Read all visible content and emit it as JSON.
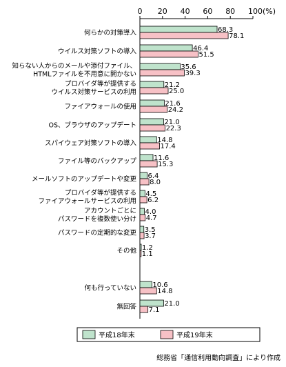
{
  "chart_data": {
    "type": "bar",
    "orientation": "horizontal",
    "xlim": [
      0,
      100
    ],
    "x_ticks": [
      "0",
      "20",
      "40",
      "60",
      "80",
      "100(%)"
    ],
    "categories": [
      [
        "何らかの対策導入"
      ],
      [
        "ウイルス対策ソフトの導入"
      ],
      [
        "知らない人からのメールや添付ファイル、",
        "HTMLファイルを不用意に開かない"
      ],
      [
        "プロバイダ等が提供する",
        "ウイルス対策サービスの利用"
      ],
      [
        "ファイアウォールの使用"
      ],
      [
        "OS、ブラウザのアップデート"
      ],
      [
        "スパイウェア対策ソフトの導入"
      ],
      [
        "ファイル等のバックアップ"
      ],
      [
        "メールソフトのアップデートや変更"
      ],
      [
        "プロバイダ等が提供する",
        "ファイアウォールサービスの利用"
      ],
      [
        "アカウントごとに",
        "パスワードを複数使い分け"
      ],
      [
        "パスワードの定期的な変更"
      ],
      [
        "その他"
      ],
      [
        "何も行っていない"
      ],
      [
        "無回答"
      ]
    ],
    "series": [
      {
        "name": "平成18年末",
        "color": "#bfe3cc",
        "values": [
          68.3,
          46.4,
          35.6,
          21.2,
          21.6,
          21.0,
          14.8,
          11.6,
          6.4,
          4.5,
          4.0,
          3.5,
          1.2,
          10.6,
          21.0
        ]
      },
      {
        "name": "平成19年末",
        "color": "#f7c1c6",
        "values": [
          78.1,
          51.5,
          39.3,
          25.0,
          24.2,
          22.3,
          17.4,
          15.3,
          8.0,
          6.2,
          4.7,
          3.7,
          1.1,
          14.8,
          7.1
        ]
      }
    ],
    "value_labels": [
      [
        "68.3",
        "78.1"
      ],
      [
        "46.4",
        "51.5"
      ],
      [
        "35.6",
        "39.3"
      ],
      [
        "21.2",
        "25.0"
      ],
      [
        "21.6",
        "24.2"
      ],
      [
        "21.0",
        "22.3"
      ],
      [
        "14.8",
        "17.4"
      ],
      [
        "11.6",
        "15.3"
      ],
      [
        "6.4",
        "8.0"
      ],
      [
        "4.5",
        "6.2"
      ],
      [
        "4.0",
        "4.7"
      ],
      [
        "3.5",
        "3.7"
      ],
      [
        "1.2",
        "1.1"
      ],
      [
        "10.6",
        "14.8"
      ],
      [
        "21.0",
        "7.1"
      ]
    ],
    "legend_position": "bottom"
  },
  "source_note": "総務省「通信利用動向調査」により作成"
}
